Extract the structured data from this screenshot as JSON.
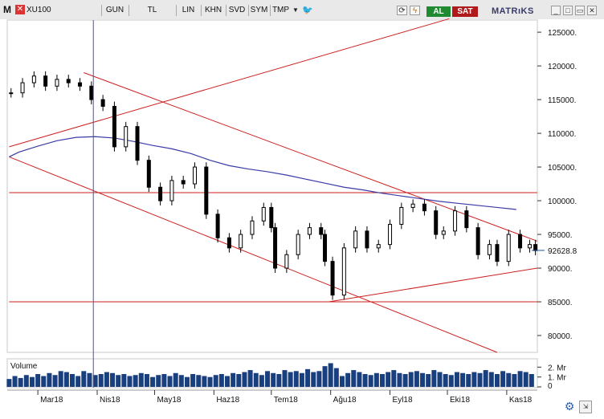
{
  "toolbar": {
    "symbol": "XU100",
    "buttons": [
      "GUN",
      "TL",
      "LIN",
      "KHN",
      "SVD",
      "SYM",
      "TMP"
    ],
    "buy_label": "AL",
    "sell_label": "SAT",
    "brand": "MATRıKS",
    "logo_letter": "M",
    "close_glyph": "✕"
  },
  "chart_data": {
    "type": "candlestick",
    "title": "",
    "price_axis": {
      "ticks": [
        "125000.",
        "120000.",
        "115000.",
        "110000.",
        "105000.",
        "100000.",
        "95000.",
        "90000.",
        "85000.",
        "80000."
      ],
      "tick_values": [
        125000,
        120000,
        115000,
        110000,
        105000,
        100000,
        95000,
        90000,
        85000,
        80000
      ],
      "ylim": [
        77500,
        126800
      ],
      "last_price_label": "92628.8",
      "last_price": 92628.8
    },
    "x_axis": {
      "labels": [
        "Mar18",
        "Nis18",
        "May18",
        "Haz18",
        "Tem18",
        "Ağu18",
        "Eyl18",
        "Eki18",
        "Kas18"
      ],
      "label_days": [
        0,
        31,
        61,
        92,
        122,
        153,
        184,
        214,
        245
      ],
      "range_days": [
        -16,
        261
      ],
      "crosshair_day": 29
    },
    "price_series": {
      "days": [
        -14,
        -8,
        -2,
        4,
        10,
        16,
        22,
        28,
        34,
        40,
        46,
        52,
        58,
        64,
        70,
        76,
        82,
        88,
        94,
        100,
        106,
        112,
        118,
        122,
        124,
        130,
        136,
        142,
        148,
        150,
        154,
        160,
        166,
        172,
        178,
        184,
        190,
        196,
        202,
        208,
        212,
        218,
        224,
        230,
        236,
        240,
        246,
        252,
        257,
        260
      ],
      "close": [
        116000,
        117500,
        118500,
        117000,
        118000,
        117500,
        117000,
        115000,
        114000,
        108000,
        111000,
        106000,
        102000,
        100000,
        103000,
        102500,
        105000,
        98000,
        94500,
        93000,
        95000,
        97000,
        99000,
        96000,
        90000,
        92000,
        95000,
        96000,
        95000,
        91000,
        86000,
        93000,
        95500,
        93000,
        93500,
        96500,
        99000,
        99500,
        98500,
        95000,
        95500,
        98500,
        96000,
        92000,
        93500,
        91000,
        95000,
        93000,
        93500,
        92600
      ]
    },
    "volume_axis": {
      "label": "Volume",
      "ticks": [
        "2. Mr",
        "1. Mr",
        "0"
      ],
      "tick_values": [
        2000000000,
        1000000000,
        0
      ],
      "ylim": [
        0,
        2600000000
      ]
    },
    "volume_series": {
      "days": [
        -15,
        -12,
        -9,
        -6,
        -3,
        0,
        3,
        6,
        9,
        12,
        15,
        18,
        21,
        24,
        27,
        30,
        33,
        36,
        39,
        42,
        45,
        48,
        51,
        54,
        57,
        60,
        63,
        66,
        69,
        72,
        75,
        78,
        81,
        84,
        87,
        90,
        93,
        96,
        99,
        102,
        105,
        108,
        111,
        114,
        117,
        120,
        123,
        126,
        129,
        132,
        135,
        138,
        141,
        144,
        147,
        150,
        153,
        156,
        159,
        162,
        165,
        168,
        171,
        174,
        177,
        180,
        183,
        186,
        189,
        192,
        195,
        198,
        201,
        204,
        207,
        210,
        213,
        216,
        219,
        222,
        225,
        228,
        231,
        234,
        237,
        240,
        243,
        246,
        249,
        252,
        255,
        258
      ],
      "values": [
        800000000,
        1100000000,
        900000000,
        1200000000,
        1000000000,
        1300000000,
        1100000000,
        1400000000,
        1200000000,
        1600000000,
        1500000000,
        1300000000,
        1100000000,
        1600000000,
        1400000000,
        1200000000,
        1300000000,
        1500000000,
        1400000000,
        1200000000,
        1300000000,
        1100000000,
        1200000000,
        1400000000,
        1300000000,
        1000000000,
        1200000000,
        1300000000,
        1100000000,
        1400000000,
        1200000000,
        1000000000,
        1300000000,
        1200000000,
        1100000000,
        1000000000,
        1200000000,
        1300000000,
        1100000000,
        1400000000,
        1300000000,
        1500000000,
        1700000000,
        1400000000,
        1200000000,
        1600000000,
        1400000000,
        1300000000,
        1700000000,
        1500000000,
        1600000000,
        1400000000,
        1800000000,
        1500000000,
        1600000000,
        2100000000,
        2400000000,
        1900000000,
        1100000000,
        1400000000,
        1700000000,
        1500000000,
        1300000000,
        1200000000,
        1400000000,
        1300000000,
        1500000000,
        1700000000,
        1400000000,
        1300000000,
        1500000000,
        1600000000,
        1400000000,
        1300000000,
        1700000000,
        1500000000,
        1300000000,
        1200000000,
        1500000000,
        1400000000,
        1300000000,
        1500000000,
        1400000000,
        1700000000,
        1500000000,
        1300000000,
        1600000000,
        1400000000,
        1300000000,
        1600000000,
        1500000000,
        1300000000
      ]
    },
    "moving_average": {
      "days": [
        -15,
        -10,
        0,
        10,
        20,
        30,
        40,
        50,
        60,
        70,
        80,
        90,
        100,
        110,
        120,
        130,
        140,
        150,
        160,
        170,
        180,
        190,
        200,
        210,
        220,
        230,
        240,
        250
      ],
      "values": [
        106500,
        107200,
        108100,
        108900,
        109400,
        109500,
        109300,
        108800,
        108200,
        107700,
        107000,
        106000,
        105200,
        104700,
        104300,
        103800,
        103200,
        102600,
        102000,
        101600,
        101100,
        100700,
        100300,
        99900,
        99600,
        99300,
        99000,
        98700
      ]
    },
    "trendlines": [
      {
        "from": [
          -15,
          108000
        ],
        "to": [
          215,
          127000
        ]
      },
      {
        "from": [
          24,
          119000
        ],
        "to": [
          261,
          94000
        ]
      },
      {
        "from": [
          -15,
          106500
        ],
        "to": [
          240,
          77500
        ]
      },
      {
        "from": [
          152,
          85000
        ],
        "to": [
          261,
          90000
        ]
      },
      {
        "from": [
          -15,
          101200
        ],
        "to": [
          261,
          101200
        ]
      },
      {
        "from": [
          -15,
          85000
        ],
        "to": [
          261,
          85000
        ]
      }
    ],
    "colors": {
      "candle": "#000000",
      "trendline": "#cc2020",
      "moving_average": "#3a3aa8",
      "volume": "#1a3f7e",
      "crosshair": "#555577",
      "last_price_marker": "#2050a0"
    },
    "grid": false
  }
}
